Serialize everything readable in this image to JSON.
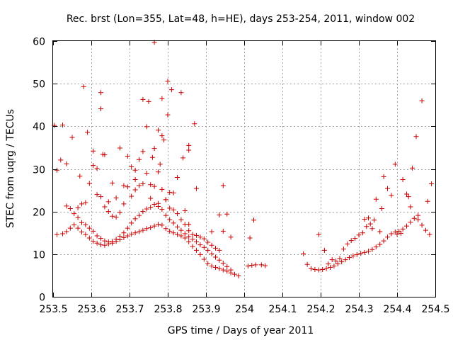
{
  "chart_data": {
    "type": "scatter",
    "title": "Rec. brst (Lon=355, Lat=48, h=HE), days 253-254, 2011, window 002",
    "xlabel": "GPS time / Days of year 2011",
    "ylabel": "STEC from uqrg / TECUs",
    "xlim": [
      253.5,
      254.5
    ],
    "ylim": [
      0,
      60
    ],
    "x_ticks": [
      "253.5",
      "253.6",
      "253.7",
      "253.8",
      "253.9",
      "254",
      "254.1",
      "254.2",
      "254.3",
      "254.4",
      "254.5"
    ],
    "y_ticks": [
      "0",
      "10",
      "20",
      "30",
      "40",
      "50",
      "60"
    ],
    "grid": true,
    "marker": "plus",
    "marker_color": "#cc0000",
    "series": [
      {
        "points": [
          [
            253.503,
            40.2
          ],
          [
            253.51,
            29.7
          ],
          [
            253.52,
            32.1
          ],
          [
            253.525,
            40.3
          ],
          [
            253.535,
            31.2
          ],
          [
            253.55,
            37.4
          ],
          [
            253.57,
            28.3
          ],
          [
            253.58,
            49.3
          ],
          [
            253.59,
            38.6
          ],
          [
            253.605,
            34.2
          ],
          [
            253.605,
            30.8
          ],
          [
            253.615,
            30.1
          ],
          [
            253.625,
            47.9
          ],
          [
            253.625,
            44.1
          ],
          [
            253.635,
            33.3
          ],
          [
            253.655,
            26.7
          ],
          [
            253.675,
            34.9
          ],
          [
            253.695,
            33.0
          ],
          [
            253.715,
            27.5
          ],
          [
            253.735,
            46.3
          ],
          [
            253.735,
            34.1
          ],
          [
            253.75,
            45.8
          ],
          [
            253.76,
            32.7
          ],
          [
            253.765,
            34.8
          ],
          [
            253.765,
            59.7
          ],
          [
            253.775,
            39.1
          ],
          [
            253.78,
            31.1
          ],
          [
            253.785,
            46.5
          ],
          [
            253.785,
            37.8
          ],
          [
            253.79,
            36.8
          ],
          [
            253.8,
            50.6
          ],
          [
            253.8,
            42.7
          ],
          [
            253.81,
            48.6
          ],
          [
            253.825,
            28.0
          ],
          [
            253.835,
            47.9
          ],
          [
            253.84,
            32.6
          ],
          [
            253.855,
            35.5
          ],
          [
            253.855,
            34.4
          ],
          [
            253.87,
            40.6
          ],
          [
            253.875,
            25.4
          ],
          [
            253.945,
            26.1
          ],
          [
            253.51,
            14.6
          ],
          [
            253.525,
            14.8
          ],
          [
            253.535,
            15.3
          ],
          [
            253.545,
            16.1
          ],
          [
            253.555,
            16.9
          ],
          [
            253.565,
            16.1
          ],
          [
            253.575,
            15.2
          ],
          [
            253.585,
            14.6
          ],
          [
            253.595,
            13.8
          ],
          [
            253.605,
            13.0
          ],
          [
            253.615,
            12.6
          ],
          [
            253.625,
            12.2
          ],
          [
            253.635,
            12.1
          ],
          [
            253.645,
            12.4
          ],
          [
            253.655,
            12.6
          ],
          [
            253.665,
            13.0
          ],
          [
            253.675,
            13.4
          ],
          [
            253.685,
            13.9
          ],
          [
            253.695,
            14.3
          ],
          [
            253.705,
            14.7
          ],
          [
            253.715,
            15.0
          ],
          [
            253.725,
            15.3
          ],
          [
            253.735,
            15.6
          ],
          [
            253.745,
            16.0
          ],
          [
            253.755,
            16.2
          ],
          [
            253.765,
            16.6
          ],
          [
            253.775,
            17.0
          ],
          [
            253.785,
            16.8
          ],
          [
            253.795,
            16.0
          ],
          [
            253.805,
            15.4
          ],
          [
            253.815,
            15.0
          ],
          [
            253.825,
            14.6
          ],
          [
            253.835,
            14.3
          ],
          [
            253.845,
            13.8
          ],
          [
            253.855,
            12.9
          ],
          [
            253.865,
            11.8
          ],
          [
            253.875,
            10.9
          ],
          [
            253.885,
            9.9
          ],
          [
            253.895,
            8.8
          ],
          [
            253.905,
            7.8
          ],
          [
            253.915,
            7.2
          ],
          [
            253.925,
            6.9
          ],
          [
            253.935,
            6.6
          ],
          [
            253.945,
            6.3
          ],
          [
            253.955,
            6.0
          ],
          [
            253.965,
            5.6
          ],
          [
            253.975,
            5.3
          ],
          [
            253.985,
            4.9
          ],
          [
            254.01,
            7.2
          ],
          [
            254.02,
            7.4
          ],
          [
            254.03,
            7.5
          ],
          [
            254.045,
            7.5
          ],
          [
            254.055,
            7.3
          ],
          [
            253.535,
            21.3
          ],
          [
            253.545,
            20.7
          ],
          [
            253.555,
            19.5
          ],
          [
            253.565,
            18.6
          ],
          [
            253.575,
            17.4
          ],
          [
            253.585,
            16.9
          ],
          [
            253.595,
            16.1
          ],
          [
            253.605,
            15.4
          ],
          [
            253.615,
            14.3
          ],
          [
            253.625,
            13.7
          ],
          [
            253.635,
            13.1
          ],
          [
            253.645,
            12.9
          ],
          [
            253.655,
            13.0
          ],
          [
            253.665,
            13.5
          ],
          [
            253.675,
            14.2
          ],
          [
            253.685,
            15.0
          ],
          [
            253.695,
            16.1
          ],
          [
            253.705,
            17.3
          ],
          [
            253.715,
            18.3
          ],
          [
            253.725,
            19.1
          ],
          [
            253.735,
            20.0
          ],
          [
            253.745,
            20.6
          ],
          [
            253.755,
            21.0
          ],
          [
            253.765,
            21.7
          ],
          [
            253.775,
            21.2
          ],
          [
            253.785,
            20.5
          ],
          [
            253.795,
            19.1
          ],
          [
            253.805,
            18.1
          ],
          [
            253.815,
            17.3
          ],
          [
            253.825,
            16.4
          ],
          [
            253.835,
            15.6
          ],
          [
            253.845,
            14.8
          ],
          [
            253.855,
            14.1
          ],
          [
            253.865,
            13.5
          ],
          [
            253.875,
            12.9
          ],
          [
            253.885,
            12.2
          ],
          [
            253.895,
            11.6
          ],
          [
            253.905,
            10.9
          ],
          [
            253.915,
            10.1
          ],
          [
            253.925,
            9.3
          ],
          [
            253.935,
            8.6
          ],
          [
            253.945,
            7.9
          ],
          [
            253.955,
            7.1
          ],
          [
            253.965,
            6.3
          ],
          [
            253.565,
            20.9
          ],
          [
            253.575,
            21.8
          ],
          [
            253.585,
            22.1
          ],
          [
            253.595,
            26.6
          ],
          [
            253.615,
            24.0
          ],
          [
            253.625,
            23.5
          ],
          [
            253.635,
            21.1
          ],
          [
            253.645,
            20.0
          ],
          [
            253.655,
            18.9
          ],
          [
            253.665,
            18.7
          ],
          [
            253.675,
            19.8
          ],
          [
            253.685,
            21.8
          ],
          [
            253.695,
            25.8
          ],
          [
            253.705,
            23.6
          ],
          [
            253.715,
            25.1
          ],
          [
            253.725,
            26.1
          ],
          [
            253.735,
            26.5
          ],
          [
            253.745,
            29.0
          ],
          [
            253.755,
            26.3
          ],
          [
            253.765,
            25.9
          ],
          [
            253.775,
            29.3
          ],
          [
            253.785,
            25.2
          ],
          [
            253.795,
            22.8
          ],
          [
            253.805,
            20.8
          ],
          [
            253.815,
            20.4
          ],
          [
            253.825,
            19.5
          ],
          [
            253.835,
            18.1
          ],
          [
            253.845,
            17.0
          ],
          [
            253.855,
            15.5
          ],
          [
            253.865,
            14.6
          ],
          [
            253.875,
            14.4
          ],
          [
            253.885,
            14.0
          ],
          [
            253.895,
            13.6
          ],
          [
            253.905,
            12.8
          ],
          [
            253.915,
            12.1
          ],
          [
            253.925,
            11.4
          ],
          [
            253.935,
            10.9
          ],
          [
            253.945,
            15.4
          ],
          [
            253.955,
            19.4
          ],
          [
            253.965,
            14.0
          ],
          [
            253.935,
            19.2
          ],
          [
            253.915,
            15.3
          ],
          [
            254.015,
            13.8
          ],
          [
            254.025,
            18.0
          ],
          [
            253.63,
            33.4
          ],
          [
            253.645,
            22.3
          ],
          [
            253.665,
            23.2
          ],
          [
            253.685,
            26.1
          ],
          [
            253.705,
            30.5
          ],
          [
            253.715,
            29.7
          ],
          [
            253.725,
            32.2
          ],
          [
            253.745,
            39.9
          ],
          [
            253.755,
            23.1
          ],
          [
            253.775,
            21.9
          ],
          [
            253.795,
            22.8
          ],
          [
            253.805,
            24.5
          ],
          [
            253.815,
            24.4
          ],
          [
            253.845,
            20.2
          ],
          [
            253.855,
            17.0
          ],
          [
            254.155,
            10.1
          ],
          [
            254.165,
            7.6
          ],
          [
            254.175,
            6.6
          ],
          [
            254.185,
            6.4
          ],
          [
            254.195,
            6.3
          ],
          [
            254.205,
            6.4
          ],
          [
            254.215,
            6.6
          ],
          [
            254.225,
            6.9
          ],
          [
            254.235,
            7.2
          ],
          [
            254.245,
            7.7
          ],
          [
            254.255,
            8.2
          ],
          [
            254.265,
            8.7
          ],
          [
            254.275,
            9.2
          ],
          [
            254.285,
            9.6
          ],
          [
            254.295,
            9.9
          ],
          [
            254.305,
            10.2
          ],
          [
            254.315,
            10.4
          ],
          [
            254.325,
            10.7
          ],
          [
            254.335,
            11.1
          ],
          [
            254.345,
            11.7
          ],
          [
            254.355,
            12.3
          ],
          [
            254.365,
            13.1
          ],
          [
            254.375,
            14.0
          ],
          [
            254.385,
            14.8
          ],
          [
            254.395,
            15.2
          ],
          [
            254.405,
            15.4
          ],
          [
            254.415,
            15.9
          ],
          [
            254.425,
            16.6
          ],
          [
            254.435,
            17.5
          ],
          [
            254.445,
            18.4
          ],
          [
            254.455,
            19.1
          ],
          [
            254.465,
            16.8
          ],
          [
            254.475,
            15.6
          ],
          [
            254.485,
            14.6
          ],
          [
            254.195,
            14.6
          ],
          [
            254.21,
            10.9
          ],
          [
            254.22,
            7.7
          ],
          [
            254.23,
            8.7
          ],
          [
            254.24,
            8.4
          ],
          [
            254.25,
            9.0
          ],
          [
            254.26,
            11.2
          ],
          [
            254.27,
            12.4
          ],
          [
            254.28,
            13.2
          ],
          [
            254.29,
            13.7
          ],
          [
            254.3,
            14.5
          ],
          [
            254.31,
            15.0
          ],
          [
            254.315,
            18.2
          ],
          [
            254.325,
            18.5
          ],
          [
            254.33,
            17.1
          ],
          [
            254.335,
            16.0
          ],
          [
            254.345,
            22.9
          ],
          [
            254.355,
            15.3
          ],
          [
            254.365,
            28.2
          ],
          [
            254.375,
            25.4
          ],
          [
            254.385,
            23.8
          ],
          [
            254.395,
            31.1
          ],
          [
            254.4,
            14.7
          ],
          [
            254.41,
            14.9
          ],
          [
            254.415,
            27.5
          ],
          [
            254.425,
            24.1
          ],
          [
            254.43,
            23.5
          ],
          [
            254.435,
            21.1
          ],
          [
            254.44,
            30.2
          ],
          [
            254.45,
            37.6
          ],
          [
            254.455,
            18.1
          ],
          [
            254.465,
            46.0
          ],
          [
            254.48,
            22.4
          ],
          [
            254.49,
            26.5
          ],
          [
            254.32,
            16.5
          ],
          [
            254.34,
            18.0
          ],
          [
            254.36,
            20.7
          ]
        ]
      }
    ]
  }
}
